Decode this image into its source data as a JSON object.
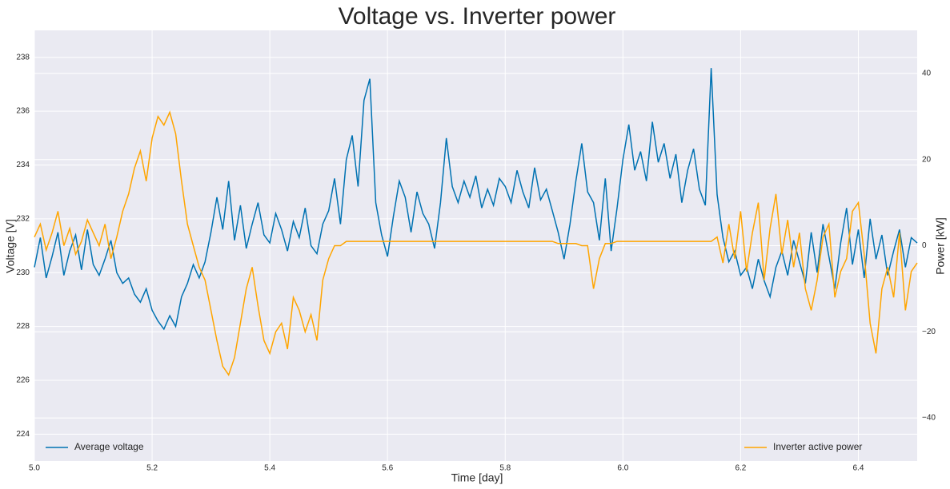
{
  "chart_data": {
    "type": "line",
    "title": "Voltage vs. Inverter power",
    "x_label": "Time [day]",
    "y_label": "Voltage [V]",
    "y2_label": "Power [kW]",
    "xlim": [
      5.0,
      6.5
    ],
    "ylim": [
      223,
      239
    ],
    "y2lim": [
      -50,
      50
    ],
    "xticks": [
      {
        "value": 5,
        "label": "5.0"
      },
      5.2,
      5.4,
      5.6,
      5.8,
      {
        "value": 6,
        "label": "6.0"
      },
      6.2,
      6.4
    ],
    "yticks": [
      224,
      226,
      228,
      230,
      232,
      234,
      236,
      238
    ],
    "y2ticks": [
      {
        "value": -40,
        "label": "−40"
      },
      {
        "value": -20,
        "label": "−20"
      },
      0,
      20,
      40
    ],
    "grid": true,
    "x": [
      5,
      5.01,
      5.02,
      5.03,
      5.04,
      5.05,
      5.06,
      5.07,
      5.08,
      5.09,
      5.1,
      5.11,
      5.12,
      5.13,
      5.14,
      5.15,
      5.16,
      5.17,
      5.18,
      5.19,
      5.2,
      5.21,
      5.22,
      5.23,
      5.24,
      5.25,
      5.26,
      5.27,
      5.28,
      5.29,
      5.3,
      5.31,
      5.32,
      5.33,
      5.34,
      5.35,
      5.36,
      5.37,
      5.38,
      5.39,
      5.4,
      5.41,
      5.42,
      5.43,
      5.44,
      5.45,
      5.46,
      5.47,
      5.48,
      5.49,
      5.5,
      5.51,
      5.52,
      5.53,
      5.54,
      5.55,
      5.56,
      5.57,
      5.58,
      5.59,
      5.6,
      5.61,
      5.62,
      5.63,
      5.64,
      5.65,
      5.66,
      5.67,
      5.68,
      5.69,
      5.7,
      5.71,
      5.72,
      5.73,
      5.74,
      5.75,
      5.76,
      5.77,
      5.78,
      5.79,
      5.8,
      5.81,
      5.82,
      5.83,
      5.84,
      5.85,
      5.86,
      5.87,
      5.88,
      5.89,
      5.9,
      5.91,
      5.92,
      5.93,
      5.94,
      5.95,
      5.96,
      5.97,
      5.98,
      5.99,
      6,
      6.01,
      6.02,
      6.03,
      6.04,
      6.05,
      6.06,
      6.07,
      6.08,
      6.09,
      6.1,
      6.11,
      6.12,
      6.13,
      6.14,
      6.15,
      6.16,
      6.17,
      6.18,
      6.19,
      6.2,
      6.21,
      6.22,
      6.23,
      6.24,
      6.25,
      6.26,
      6.27,
      6.28,
      6.29,
      6.3,
      6.31,
      6.32,
      6.33,
      6.34,
      6.35,
      6.36,
      6.37,
      6.38,
      6.39,
      6.4,
      6.41,
      6.42,
      6.43,
      6.44,
      6.45,
      6.46,
      6.47,
      6.48,
      6.49,
      6.5
    ],
    "series": [
      {
        "name": "Average voltage",
        "color": "#0072b2",
        "axis": "y",
        "legend_loc": "lower left",
        "values": [
          230.2,
          231.3,
          229.8,
          230.6,
          231.5,
          229.9,
          230.8,
          231.4,
          230.1,
          231.6,
          230.3,
          229.9,
          230.5,
          231.2,
          230.0,
          229.6,
          229.8,
          229.2,
          228.9,
          229.4,
          228.6,
          228.2,
          227.9,
          228.4,
          228.0,
          229.1,
          229.6,
          230.3,
          229.8,
          230.4,
          231.5,
          232.8,
          231.6,
          233.4,
          231.2,
          232.5,
          230.9,
          231.8,
          232.6,
          231.4,
          231.1,
          232.2,
          231.6,
          230.8,
          231.9,
          231.3,
          232.4,
          231.0,
          230.7,
          231.8,
          232.3,
          233.5,
          231.8,
          234.2,
          235.1,
          233.2,
          236.4,
          237.2,
          232.6,
          231.4,
          230.6,
          232.1,
          233.4,
          232.8,
          231.5,
          233.0,
          232.2,
          231.8,
          230.9,
          232.6,
          235.0,
          233.2,
          232.6,
          233.4,
          232.8,
          233.6,
          232.4,
          233.1,
          232.5,
          233.5,
          233.2,
          232.6,
          233.8,
          233.0,
          232.4,
          233.9,
          232.7,
          233.1,
          232.3,
          231.5,
          230.5,
          231.8,
          233.4,
          234.8,
          233.0,
          232.6,
          231.2,
          233.5,
          230.8,
          232.4,
          234.2,
          235.5,
          233.8,
          234.5,
          233.4,
          235.6,
          234.1,
          234.8,
          233.5,
          234.4,
          232.6,
          233.8,
          234.6,
          233.1,
          232.5,
          237.6,
          232.9,
          231.3,
          230.4,
          230.8,
          229.9,
          230.2,
          229.4,
          230.5,
          229.7,
          229.1,
          230.2,
          230.8,
          229.9,
          231.2,
          230.4,
          229.6,
          231.5,
          230.0,
          231.8,
          230.6,
          229.4,
          231.1,
          232.4,
          230.3,
          231.6,
          229.8,
          232.0,
          230.5,
          231.4,
          229.9,
          230.8,
          231.6,
          230.2,
          231.3,
          231.1
        ]
      },
      {
        "name": "Inverter active power",
        "color": "#ffa500",
        "axis": "y2",
        "legend_loc": "lower right",
        "values": [
          2,
          5,
          -1,
          3,
          8,
          0,
          4,
          -2,
          1,
          6,
          3,
          0,
          5,
          -3,
          2,
          8,
          12,
          18,
          22,
          15,
          25,
          30,
          28,
          31,
          26,
          15,
          5,
          0,
          -5,
          -8,
          -15,
          -22,
          -28,
          -30,
          -26,
          -18,
          -10,
          -5,
          -14,
          -22,
          -25,
          -20,
          -18,
          -24,
          -12,
          -15,
          -20,
          -16,
          -22,
          -8,
          -3,
          0,
          0,
          1,
          1,
          1,
          1,
          1,
          1,
          1,
          1,
          1,
          1,
          1,
          1,
          1,
          1,
          1,
          1,
          1,
          1,
          1,
          1,
          1,
          1,
          1,
          1,
          1,
          1,
          1,
          1,
          1,
          1,
          1,
          1,
          1,
          1,
          1,
          1,
          0.5,
          0.5,
          0.5,
          0.5,
          0,
          0,
          -10,
          -3,
          0.5,
          0.5,
          1,
          1,
          1,
          1,
          1,
          1,
          1,
          1,
          1,
          1,
          1,
          1,
          1,
          1,
          1,
          1,
          1,
          2,
          -4,
          5,
          -3,
          8,
          -6,
          3,
          10,
          -8,
          4,
          12,
          -2,
          6,
          -5,
          3,
          -10,
          -15,
          -8,
          2,
          5,
          -12,
          -6,
          -3,
          8,
          10,
          -2,
          -18,
          -25,
          -10,
          -5,
          -12,
          3,
          -15,
          -6,
          -4
        ]
      }
    ]
  }
}
